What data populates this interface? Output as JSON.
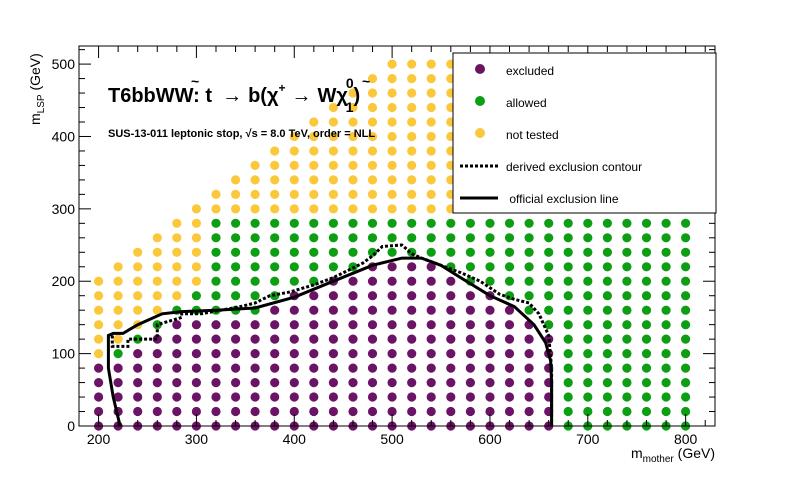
{
  "chart_data": {
    "type": "scatter",
    "title": "T6bbWW: t̃ → b(χ⁺ → Wχ̃⁰₁)",
    "title_parts": {
      "prefix": "T6bbWW: ",
      "stop": "t",
      "tilde": "~",
      "arrow1": "→",
      "b": "b(χ",
      "plus": "+",
      "arrow2": "→",
      "w": "W",
      "chi": "χ",
      "zero": "0",
      "one": "1",
      "close": ")"
    },
    "subtitle": "SUS-13-011  leptonic stop,  √s =  8.0 TeV, order =  NLL",
    "subtitle_parts": {
      "pre": "SUS-13-011  leptonic stop,  ",
      "sqrt": "√",
      "post": "s =  8.0 TeV, order =  NLL"
    },
    "xlabel": "m_mother (GeV)",
    "xlabel_parts": {
      "m": "m",
      "sub": "mother",
      "unit": " (GeV)"
    },
    "ylabel": "m_LSP (GeV)",
    "ylabel_parts": {
      "m": "m",
      "sub": "LSP",
      "unit": " (GeV)"
    },
    "xlim": [
      180,
      830
    ],
    "ylim": [
      0,
      525
    ],
    "xticks": [
      200,
      300,
      400,
      500,
      600,
      700,
      800
    ],
    "yticks": [
      0,
      100,
      200,
      300,
      400,
      500
    ],
    "grid": false,
    "legend_position": "top-right",
    "legend": [
      {
        "label": "excluded",
        "kind": "marker",
        "color": "#6b1466"
      },
      {
        "label": "allowed",
        "kind": "marker",
        "color": "#0d9e14"
      },
      {
        "label": "not tested",
        "kind": "marker",
        "color": "#fbc83b"
      },
      {
        "label": "derived exclusion contour",
        "kind": "dotted-line",
        "color": "#000000"
      },
      {
        "label": " official exclusion line",
        "kind": "solid-line",
        "color": "#000000"
      }
    ],
    "colors": {
      "excluded": "#6b1466",
      "allowed": "#0d9e14",
      "not_tested": "#fbc83b",
      "contour": "#000000"
    },
    "grid_points": {
      "x_start": 200,
      "x_end": 800,
      "x_step": 20,
      "y_start": 0,
      "y_step": 20,
      "y_max_per_column": [
        200,
        220,
        240,
        260,
        280,
        300,
        320,
        340,
        360,
        380,
        400,
        420,
        440,
        460,
        480,
        500,
        500,
        500,
        500,
        500,
        500,
        500,
        500,
        500,
        500,
        500,
        500,
        500,
        500,
        500,
        500
      ],
      "y_max_tested": 280,
      "not_tested_rule": "y >= x - 120 and x < 320",
      "not_tested_upper_rule": "y >= 300 and x <= 460",
      "not_tested_col_max_tested": {
        "460": 280,
        "480": 280,
        "500": 280,
        "520": 280,
        "540": 280,
        "560": 280,
        "580": 280
      },
      "excluded_regions": [
        {
          "x": 200,
          "ymax": 80
        },
        {
          "x": 220,
          "ymax": 80
        },
        {
          "x": 240,
          "ymax": 100
        },
        {
          "x": 260,
          "ymax": 120
        },
        {
          "x": 280,
          "ymax": 140
        },
        {
          "x": 300,
          "ymax": 140
        },
        {
          "x": 320,
          "ymax": 140
        },
        {
          "x": 340,
          "ymax": 140
        },
        {
          "x": 360,
          "ymax": 140
        },
        {
          "x": 380,
          "ymax": 160
        },
        {
          "x": 400,
          "ymax": 180
        },
        {
          "x": 420,
          "ymax": 180
        },
        {
          "x": 440,
          "ymax": 200
        },
        {
          "x": 460,
          "ymax": 200
        },
        {
          "x": 480,
          "ymax": 220
        },
        {
          "x": 500,
          "ymax": 220
        },
        {
          "x": 520,
          "ymax": 220
        },
        {
          "x": 540,
          "ymax": 220
        },
        {
          "x": 560,
          "ymax": 200
        },
        {
          "x": 580,
          "ymax": 180
        },
        {
          "x": 600,
          "ymax": 180
        },
        {
          "x": 620,
          "ymax": 160
        },
        {
          "x": 640,
          "ymax": 140
        },
        {
          "x": 660,
          "ymax": 120
        }
      ]
    },
    "series": [
      {
        "name": "derived exclusion contour",
        "style": "dotted",
        "x": [
          214,
          214,
          230,
          230,
          260,
          260,
          285,
          285,
          305,
          325,
          345,
          360,
          375,
          395,
          420,
          440,
          455,
          470,
          480,
          490,
          510,
          520,
          530,
          550,
          570,
          590,
          610,
          625,
          640,
          650,
          660,
          663,
          663
        ],
        "y": [
          125,
          110,
          110,
          120,
          120,
          140,
          150,
          155,
          155,
          160,
          165,
          170,
          180,
          185,
          195,
          205,
          215,
          225,
          235,
          248,
          250,
          238,
          232,
          222,
          212,
          200,
          182,
          175,
          170,
          155,
          125,
          80,
          0
        ]
      },
      {
        "name": "official exclusion line",
        "style": "solid",
        "x": [
          222,
          215,
          210,
          210,
          215,
          225,
          240,
          265,
          285,
          320,
          360,
          400,
          440,
          480,
          510,
          530,
          550,
          570,
          600,
          625,
          645,
          657,
          662,
          663,
          663
        ],
        "y": [
          0,
          40,
          80,
          125,
          128,
          128,
          140,
          155,
          158,
          160,
          163,
          178,
          200,
          222,
          232,
          232,
          222,
          205,
          180,
          165,
          140,
          115,
          90,
          60,
          0
        ]
      }
    ]
  }
}
